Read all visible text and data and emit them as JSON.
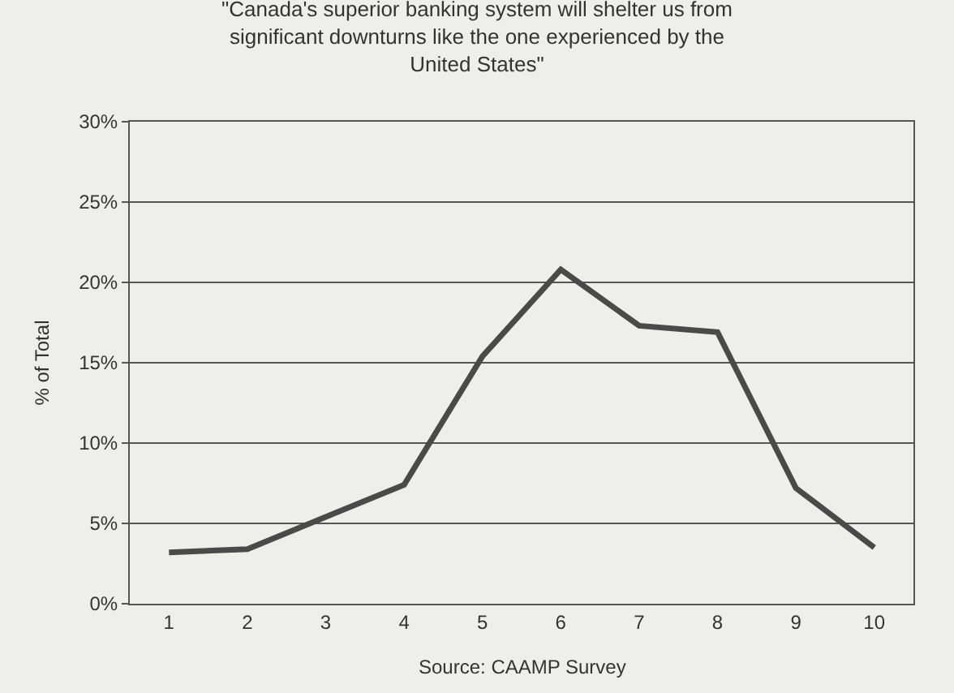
{
  "chart_data": {
    "type": "line",
    "title": "\"Canada's superior banking system will shelter us from significant downturns like the one experienced by the United States\"",
    "ylabel": "% of Total",
    "categories": [
      "1",
      "2",
      "3",
      "4",
      "5",
      "6",
      "7",
      "8",
      "9",
      "10"
    ],
    "series": [
      {
        "color": "#4a4a4a",
        "values": [
          3.2,
          3.4,
          5.4,
          7.4,
          15.4,
          20.8,
          17.3,
          16.9,
          7.2,
          3.5
        ]
      }
    ],
    "ylim": [
      0,
      30
    ],
    "yticks": [
      {
        "value": 0,
        "label": "0%"
      },
      {
        "value": 5,
        "label": "5%"
      },
      {
        "value": 10,
        "label": "10%"
      },
      {
        "value": 15,
        "label": "15%"
      },
      {
        "value": 20,
        "label": "20%"
      },
      {
        "value": 25,
        "label": "25%"
      },
      {
        "value": 30,
        "label": "30%"
      }
    ],
    "grid": "y",
    "marker": "none",
    "line_style": "solid",
    "annotations": [
      "Source: CAAMP Survey"
    ]
  }
}
